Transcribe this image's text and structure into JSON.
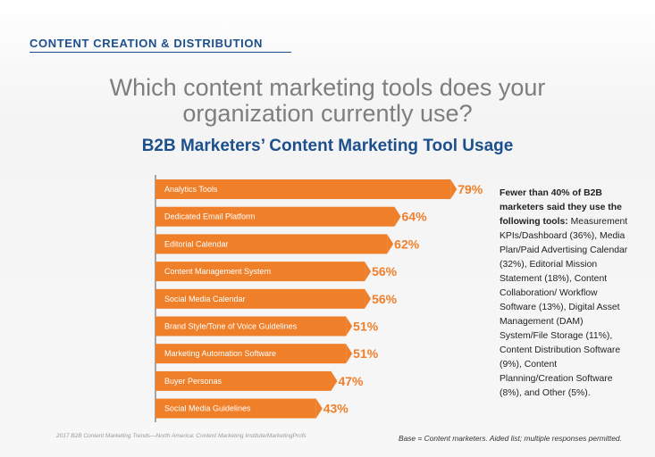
{
  "header": {
    "section_title": "CONTENT CREATION & DISTRIBUTION",
    "question": "Which content marketing tools does your organization currently use?"
  },
  "chart_data": {
    "type": "bar",
    "orientation": "horizontal",
    "title": "B2B Marketers’ Content Marketing Tool Usage",
    "categories": [
      "Analytics Tools",
      "Dedicated Email Platform",
      "Editorial Calendar",
      "Content Management System",
      "Social Media Calendar",
      "Brand Style/Tone of Voice Guidelines",
      "Marketing Automation Software",
      "Buyer Personas",
      "Social Media Guidelines"
    ],
    "values": [
      79,
      64,
      62,
      56,
      56,
      51,
      51,
      47,
      43
    ],
    "value_labels": [
      "79%",
      "64%",
      "62%",
      "56%",
      "56%",
      "51%",
      "51%",
      "47%",
      "43%"
    ],
    "unit": "%",
    "xlim": [
      0,
      100
    ],
    "bar_color": "#f07f2a",
    "label_color": "#f07f2a"
  },
  "note": {
    "lead": "Fewer than 40% of B2B marketers said they use the following tools:",
    "body": "Measurement KPIs/Dashboard (36%), Media Plan/Paid Advertising Calendar (32%), Editorial Mission Statement (18%), Content Collaboration/ Workflow Software (13%), Digital Asset Management (DAM) System/File Storage (11%), Content Distribution Software (9%), Content Planning/Creation Software (8%), and Other (5%)."
  },
  "footer": {
    "source": "2017 B2B Content Marketing Trends—North America: Content Marketing Institute/MarketingProfs",
    "base": "Base = Content marketers. Aided list; multiple responses permitted."
  },
  "colors": {
    "brand_blue": "#1d4f8c",
    "accent_orange": "#f07f2a",
    "question_gray": "#7e7e7e"
  }
}
